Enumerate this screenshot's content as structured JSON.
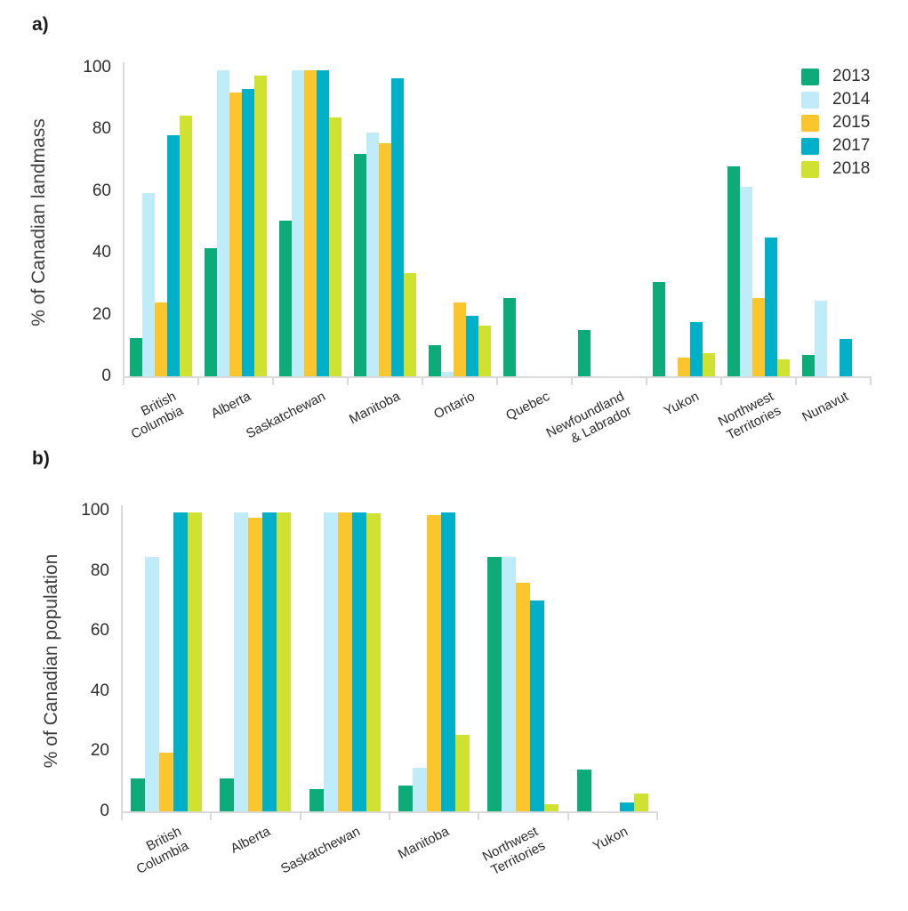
{
  "panels": [
    {
      "label": "a)",
      "ylabel": "% of Canadian landmass"
    },
    {
      "label": "b)",
      "ylabel": "% of Canadian population"
    }
  ],
  "legend": {
    "position": "top-right",
    "entries": [
      {
        "label": "2013",
        "color": "#0dab78"
      },
      {
        "label": "2014",
        "color": "#bfecf8"
      },
      {
        "label": "2015",
        "color": "#fbc52d"
      },
      {
        "label": "2017",
        "color": "#00afc8"
      },
      {
        "label": "2018",
        "color": "#cfe232"
      }
    ]
  },
  "chart_data": [
    {
      "type": "bar",
      "title": "a",
      "ylabel": "% of Canadian landmass",
      "xlabel": "",
      "ylim": [
        0,
        100
      ],
      "yticks": [
        0,
        20,
        40,
        60,
        80,
        100
      ],
      "grid": false,
      "categories": [
        "British\nColumbia",
        "Alberta",
        "Saskatchewan",
        "Manitoba",
        "Ontario",
        "Quebec",
        "Newfoundland\n& Labrador",
        "Yukon",
        "Northwest\nTerritories",
        "Nunavut"
      ],
      "series": [
        {
          "name": "2013",
          "color": "#0dab78",
          "values": [
            12.5,
            41.5,
            50.5,
            72,
            10,
            25.5,
            15,
            30.5,
            68,
            7
          ]
        },
        {
          "name": "2014",
          "color": "#bfecf8",
          "values": [
            59.5,
            99,
            99,
            79,
            1.5,
            0,
            0,
            0,
            61.5,
            24.5
          ]
        },
        {
          "name": "2015",
          "color": "#fbc52d",
          "values": [
            24,
            92,
            99,
            75.5,
            24,
            0,
            0,
            6,
            25.5,
            0
          ]
        },
        {
          "name": "2017",
          "color": "#00afc8",
          "values": [
            78,
            93,
            99,
            96.5,
            19.5,
            0,
            0,
            17.5,
            45,
            12
          ]
        },
        {
          "name": "2018",
          "color": "#cfe232",
          "values": [
            84.5,
            97.5,
            84,
            33.5,
            16.5,
            0,
            0,
            7.5,
            5.5,
            0
          ]
        }
      ]
    },
    {
      "type": "bar",
      "title": "b",
      "ylabel": "% of Canadian population",
      "xlabel": "",
      "ylim": [
        0,
        100
      ],
      "yticks": [
        0,
        20,
        40,
        60,
        80,
        100
      ],
      "grid": false,
      "categories": [
        "British\nColumbia",
        "Alberta",
        "Saskatchewan",
        "Manitoba",
        "Northwest\nTerritories",
        "Yukon"
      ],
      "series": [
        {
          "name": "2013",
          "color": "#0dab78",
          "values": [
            11,
            11,
            7.5,
            8.5,
            84.5,
            14
          ]
        },
        {
          "name": "2014",
          "color": "#bfecf8",
          "values": [
            84.5,
            99.5,
            99.5,
            14.5,
            84.5,
            0
          ]
        },
        {
          "name": "2015",
          "color": "#fbc52d",
          "values": [
            19.5,
            97.5,
            99.5,
            98.5,
            76,
            0
          ]
        },
        {
          "name": "2017",
          "color": "#00afc8",
          "values": [
            99.5,
            99.5,
            99.5,
            99.5,
            70,
            3
          ]
        },
        {
          "name": "2018",
          "color": "#cfe232",
          "values": [
            99.5,
            99.5,
            99,
            25.5,
            2.5,
            6
          ]
        }
      ]
    }
  ]
}
